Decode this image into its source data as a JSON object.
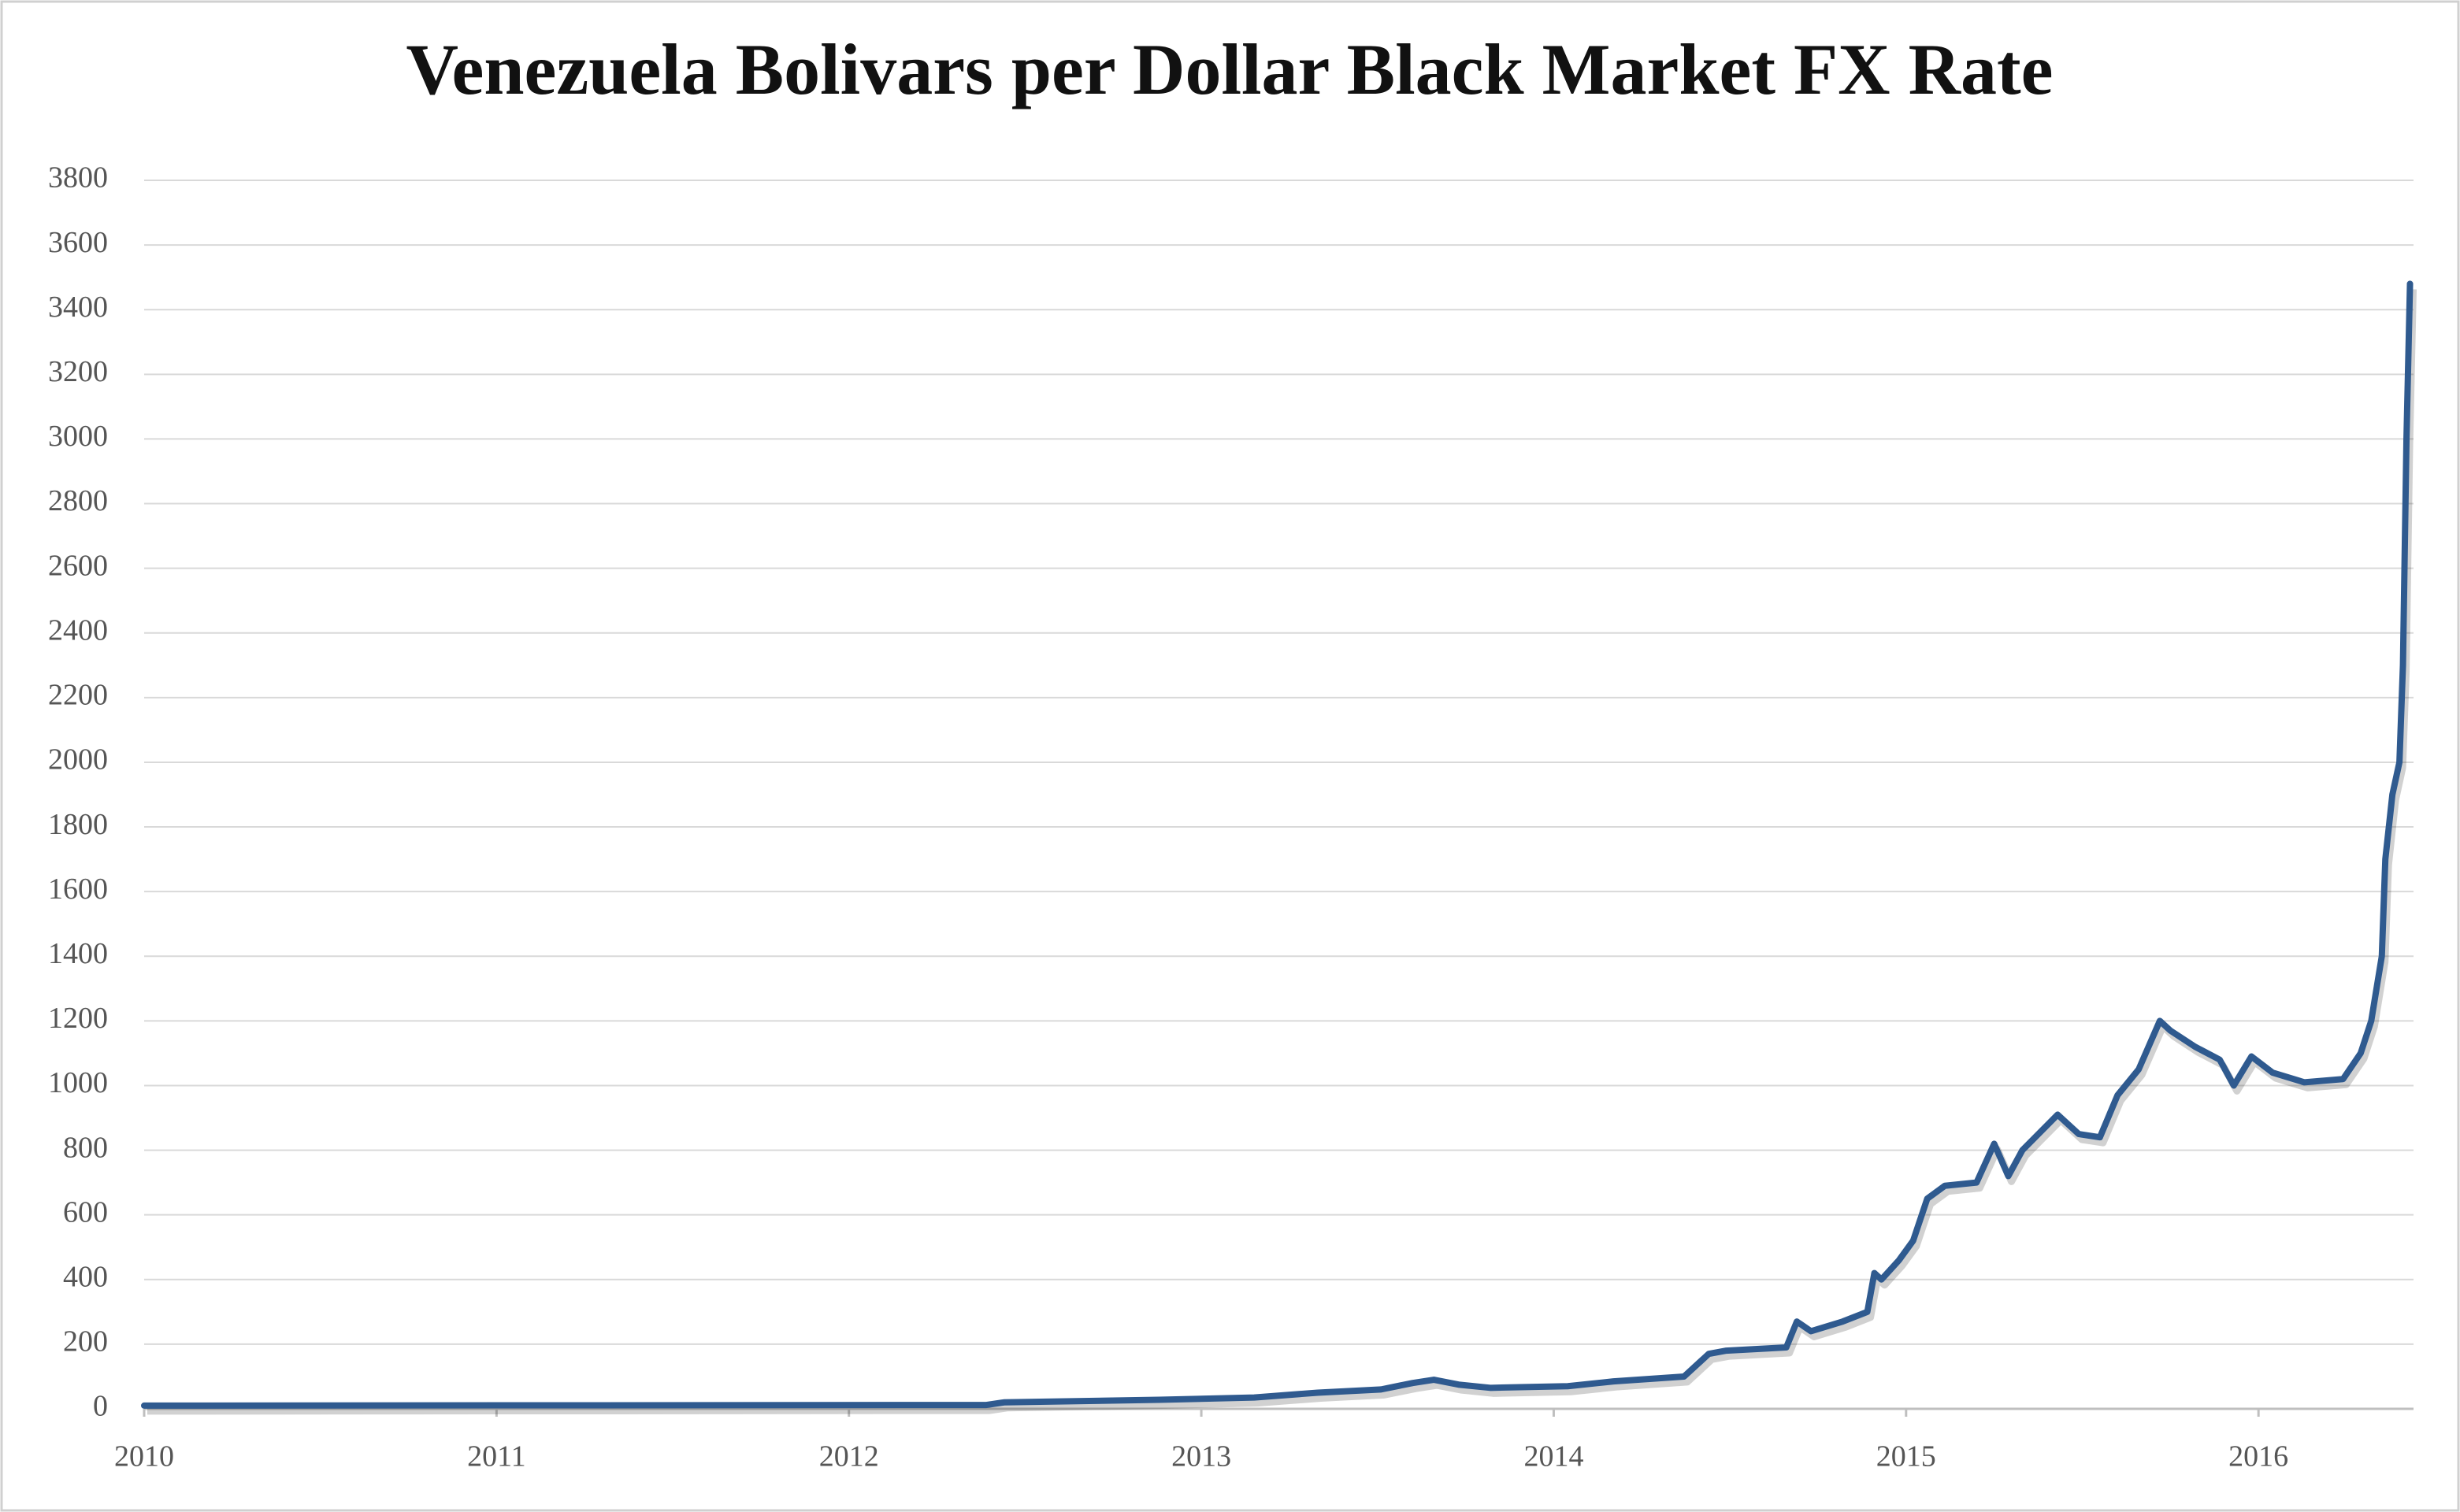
{
  "chart_data": {
    "type": "line",
    "title": "Venezuela Bolivars per Dollar Black Market FX Rate",
    "x": [
      2010,
      2012.39,
      2012.44,
      2012.88,
      2013.15,
      2013.33,
      2013.51,
      2013.6,
      2013.66,
      2013.73,
      2013.82,
      2014.04,
      2014.17,
      2014.37,
      2014.44,
      2014.49,
      2014.66,
      2014.69,
      2014.73,
      2014.82,
      2014.89,
      2014.91,
      2014.93,
      2014.98,
      2015.02,
      2015.06,
      2015.11,
      2015.2,
      2015.25,
      2015.29,
      2015.33,
      2015.43,
      2015.49,
      2015.55,
      2015.6,
      2015.66,
      2015.72,
      2015.75,
      2015.82,
      2015.89,
      2015.93,
      2015.98,
      2016.04,
      2016.13,
      2016.24,
      2016.29,
      2016.32,
      2016.35,
      2016.36,
      2016.38,
      2016.4,
      2016.41,
      2016.42,
      2016.43
    ],
    "series": [
      {
        "color": "#2f5a8f",
        "values": [
          10,
          12,
          20,
          28,
          35,
          50,
          60,
          80,
          90,
          75,
          65,
          70,
          85,
          100,
          170,
          180,
          190,
          270,
          240,
          270,
          300,
          420,
          400,
          460,
          520,
          650,
          690,
          700,
          820,
          720,
          800,
          910,
          850,
          840,
          970,
          1050,
          1200,
          1170,
          1120,
          1080,
          1000,
          1090,
          1040,
          1010,
          1020,
          1100,
          1200,
          1400,
          1700,
          1900,
          2000,
          2300,
          3000,
          3480
        ]
      }
    ],
    "xlim": [
      2010,
      2016.44
    ],
    "xticks": [
      2010,
      2011,
      2012,
      2013,
      2014,
      2015,
      2016
    ],
    "ylim": [
      0,
      3800
    ],
    "yticks": [
      0,
      200,
      400,
      600,
      800,
      1000,
      1200,
      1400,
      1600,
      1800,
      2000,
      2200,
      2400,
      2600,
      2800,
      3000,
      3200,
      3400,
      3600,
      3800
    ],
    "grid": true
  }
}
